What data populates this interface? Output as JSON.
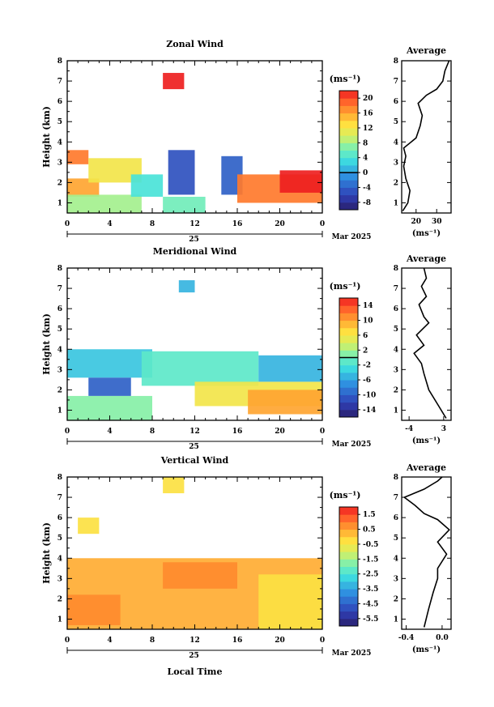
{
  "chart_data": [
    {
      "type": "heatmap",
      "title": "Zonal Wind",
      "ylabel": "Height (km)",
      "x_ticks": [
        "0",
        "4",
        "8",
        "12",
        "16",
        "20",
        "0"
      ],
      "xlim": [
        0,
        24
      ],
      "ylim": [
        0.5,
        8
      ],
      "y_ticks": [
        "1",
        "2",
        "3",
        "4",
        "5",
        "6",
        "7",
        "8"
      ],
      "date_day": "25",
      "date_month": "Mar 2025",
      "colorbar": {
        "unit": "(ms⁻¹)",
        "ticks": [
          "20",
          "16",
          "12",
          "8",
          "4",
          "0",
          "-4",
          "-8"
        ],
        "range": [
          -10,
          22
        ],
        "zero_line": 0
      },
      "patches": [
        {
          "x": [
            0,
            2
          ],
          "y": [
            2.9,
            3.6
          ],
          "value": 18
        },
        {
          "x": [
            0,
            3
          ],
          "y": [
            1.3,
            2.2
          ],
          "value": 16
        },
        {
          "x": [
            2,
            7
          ],
          "y": [
            2.0,
            3.2
          ],
          "value": 12
        },
        {
          "x": [
            0,
            7
          ],
          "y": [
            0.5,
            1.4
          ],
          "value": 8
        },
        {
          "x": [
            6,
            9
          ],
          "y": [
            1.3,
            2.4
          ],
          "value": 4
        },
        {
          "x": [
            9,
            13
          ],
          "y": [
            0.5,
            1.3
          ],
          "value": 6
        },
        {
          "x": [
            9.5,
            12
          ],
          "y": [
            1.4,
            3.6
          ],
          "value": -5
        },
        {
          "x": [
            14.5,
            16.5
          ],
          "y": [
            1.4,
            3.3
          ],
          "value": -4
        },
        {
          "x": [
            16,
            24
          ],
          "y": [
            1.0,
            2.4
          ],
          "value": 18
        },
        {
          "x": [
            20,
            24
          ],
          "y": [
            1.5,
            2.6
          ],
          "value": 22
        },
        {
          "x": [
            9,
            11
          ],
          "y": [
            6.6,
            7.4
          ],
          "value": 22
        }
      ],
      "profile": {
        "title": "Average",
        "x_ticks": [
          "20",
          "30"
        ],
        "xlim": [
          13,
          37
        ],
        "xlabel": "(ms⁻¹)",
        "points": [
          [
            13.5,
            0.6
          ],
          [
            16,
            1.0
          ],
          [
            17,
            1.6
          ],
          [
            15,
            2.2
          ],
          [
            14,
            2.8
          ],
          [
            15,
            3.3
          ],
          [
            14,
            3.7
          ],
          [
            20,
            4.2
          ],
          [
            22,
            4.8
          ],
          [
            23,
            5.3
          ],
          [
            21,
            5.9
          ],
          [
            25,
            6.3
          ],
          [
            30,
            6.6
          ],
          [
            33,
            7.0
          ],
          [
            34,
            7.5
          ],
          [
            36,
            8.0
          ]
        ]
      }
    },
    {
      "type": "heatmap",
      "title": "Meridional Wind",
      "ylabel": "Height (km)",
      "x_ticks": [
        "0",
        "4",
        "8",
        "12",
        "16",
        "20",
        "0"
      ],
      "xlim": [
        0,
        24
      ],
      "ylim": [
        0.5,
        8
      ],
      "y_ticks": [
        "1",
        "2",
        "3",
        "4",
        "5",
        "6",
        "7",
        "8"
      ],
      "date_day": "25",
      "date_month": "Mar 2025",
      "colorbar": {
        "unit": "(ms⁻¹)",
        "ticks": [
          "14",
          "10",
          "6",
          "2",
          "-2",
          "-6",
          "-10",
          "-14"
        ],
        "range": [
          -16,
          16
        ],
        "zero_line": 0
      },
      "patches": [
        {
          "x": [
            0,
            8
          ],
          "y": [
            2.6,
            4.0
          ],
          "value": -4
        },
        {
          "x": [
            2,
            6
          ],
          "y": [
            1.7,
            2.6
          ],
          "value": -10
        },
        {
          "x": [
            0,
            8
          ],
          "y": [
            0.5,
            1.7
          ],
          "value": 1
        },
        {
          "x": [
            7,
            18
          ],
          "y": [
            2.2,
            3.9
          ],
          "value": -1
        },
        {
          "x": [
            12,
            24
          ],
          "y": [
            1.2,
            2.4
          ],
          "value": 6
        },
        {
          "x": [
            17,
            24
          ],
          "y": [
            0.8,
            2.0
          ],
          "value": 10
        },
        {
          "x": [
            18,
            24
          ],
          "y": [
            2.4,
            3.7
          ],
          "value": -5
        },
        {
          "x": [
            10.5,
            12
          ],
          "y": [
            6.8,
            7.4
          ],
          "value": -5
        }
      ],
      "profile": {
        "title": "Average",
        "x_ticks": [
          "-4",
          "3"
        ],
        "xlim": [
          -5.5,
          4.5
        ],
        "xlabel": "(ms⁻¹)",
        "points": [
          [
            3.5,
            0.6
          ],
          [
            2,
            1.2
          ],
          [
            0,
            2.0
          ],
          [
            -1,
            2.8
          ],
          [
            -1.5,
            3.3
          ],
          [
            -3,
            3.8
          ],
          [
            -1,
            4.2
          ],
          [
            -2.5,
            4.7
          ],
          [
            0,
            5.3
          ],
          [
            -1,
            5.6
          ],
          [
            -2,
            6.2
          ],
          [
            -0.5,
            6.6
          ],
          [
            -1.5,
            7.1
          ],
          [
            -0.5,
            7.5
          ],
          [
            -1,
            8.0
          ]
        ]
      }
    },
    {
      "type": "heatmap",
      "title": "Vertical Wind",
      "ylabel": "Height (km)",
      "xlabel": "Local Time",
      "x_ticks": [
        "0",
        "4",
        "8",
        "12",
        "16",
        "20",
        "0"
      ],
      "xlim": [
        0,
        24
      ],
      "ylim": [
        0.5,
        8
      ],
      "y_ticks": [
        "1",
        "2",
        "3",
        "4",
        "5",
        "6",
        "7",
        "8"
      ],
      "date_day": "25",
      "date_month": "Mar 2025",
      "colorbar": {
        "unit": "(ms⁻¹)",
        "ticks": [
          "1.5",
          "0.5",
          "-0.5",
          "-1.5",
          "-2.5",
          "-3.5",
          "-4.5",
          "-5.5"
        ],
        "range": [
          -6,
          2
        ],
        "zero_line": null
      },
      "patches": [
        {
          "x": [
            0,
            24
          ],
          "y": [
            0.5,
            4.0
          ],
          "value": 0.4
        },
        {
          "x": [
            0,
            5
          ],
          "y": [
            0.7,
            2.2
          ],
          "value": 0.8
        },
        {
          "x": [
            9,
            16
          ],
          "y": [
            2.5,
            3.8
          ],
          "value": 0.8
        },
        {
          "x": [
            18,
            24
          ],
          "y": [
            0.5,
            3.2
          ],
          "value": -0.3
        },
        {
          "x": [
            1,
            3
          ],
          "y": [
            5.2,
            6.0
          ],
          "value": -0.3
        },
        {
          "x": [
            9,
            11
          ],
          "y": [
            7.2,
            8.0
          ],
          "value": -0.3
        }
      ],
      "profile": {
        "title": "Average",
        "x_ticks": [
          "-0.4",
          "0.0"
        ],
        "xlim": [
          -0.45,
          0.1
        ],
        "xlabel": "(ms⁻¹)",
        "points": [
          [
            -0.2,
            0.6
          ],
          [
            -0.15,
            1.5
          ],
          [
            -0.1,
            2.3
          ],
          [
            -0.05,
            3.0
          ],
          [
            -0.05,
            3.5
          ],
          [
            0.05,
            4.2
          ],
          [
            -0.05,
            4.8
          ],
          [
            0.08,
            5.4
          ],
          [
            -0.05,
            5.9
          ],
          [
            -0.2,
            6.2
          ],
          [
            -0.3,
            6.6
          ],
          [
            -0.42,
            7.0
          ],
          [
            -0.2,
            7.4
          ],
          [
            -0.05,
            7.8
          ],
          [
            0.0,
            8.0
          ]
        ]
      }
    }
  ]
}
